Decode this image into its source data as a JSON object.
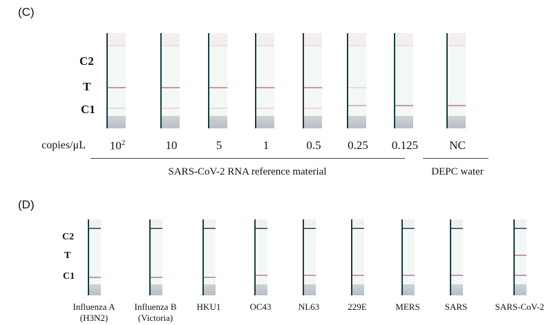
{
  "panel_c": {
    "label": "(C)",
    "zones": [
      "C2",
      "T",
      "C1"
    ],
    "unit_label": "copies/μL",
    "strips": [
      {
        "label": "10",
        "sup": "2",
        "t": "strong",
        "c1": "faint"
      },
      {
        "label": "10",
        "sup": "",
        "t": "strong",
        "c1": "faint"
      },
      {
        "label": "5",
        "sup": "",
        "t": "strong",
        "c1": "faint"
      },
      {
        "label": "1",
        "sup": "",
        "t": "strong",
        "c1": "faint"
      },
      {
        "label": "0.5",
        "sup": "",
        "t": "strong",
        "c1": "faint"
      },
      {
        "label": "0.25",
        "sup": "",
        "t": "faint",
        "c1": "medium"
      },
      {
        "label": "0.125",
        "sup": "",
        "t": "none",
        "c1": "strong"
      },
      {
        "label": "NC",
        "sup": "",
        "t": "none",
        "c1": "strong"
      }
    ],
    "group_rna": "SARS-CoV-2 RNA reference material",
    "group_water": "DEPC water"
  },
  "panel_d": {
    "label": "(D)",
    "zones": [
      "C2",
      "T",
      "C1"
    ],
    "strips": [
      {
        "line1": "Influenza A",
        "line2": "(H3N2)",
        "t": "none"
      },
      {
        "line1": "Influenza B",
        "line2": "(Victoria)",
        "t": "none"
      },
      {
        "line1": "HKU1",
        "line2": "",
        "t": "none"
      },
      {
        "line1": "OC43",
        "line2": "",
        "t": "none"
      },
      {
        "line1": "NL63",
        "line2": "",
        "t": "none"
      },
      {
        "line1": "229E",
        "line2": "",
        "t": "none"
      },
      {
        "line1": "MERS",
        "line2": "",
        "t": "none"
      },
      {
        "line1": "SARS",
        "line2": "",
        "t": "none"
      },
      {
        "line1": "SARS-CoV-2",
        "line2": "",
        "t": "strong"
      }
    ]
  },
  "colors": {
    "band": "#e08aa8",
    "strip_edge": "#123f42"
  }
}
